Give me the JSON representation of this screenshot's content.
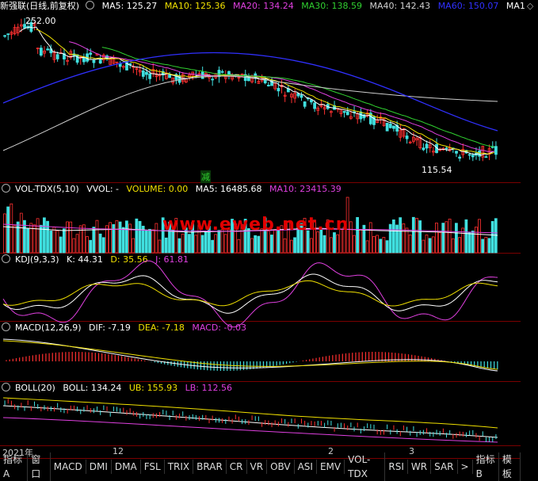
{
  "main": {
    "title": "新强联(日线,前复权)",
    "ma": [
      {
        "label": "MA5: 125.27",
        "color": "#ffffff"
      },
      {
        "label": "MA10: 125.36",
        "color": "#f0e000"
      },
      {
        "label": "MA20: 134.24",
        "color": "#e040e0"
      },
      {
        "label": "MA30: 138.59",
        "color": "#30d030"
      },
      {
        "label": "MA40: 142.43",
        "color": "#d0d0d0"
      },
      {
        "label": "MA60: 150.07",
        "color": "#3030ff"
      },
      {
        "label": "MA1",
        "color": "#ffffff"
      }
    ],
    "high_label": "252.00",
    "low_label": "115.54",
    "mark_text": "减"
  },
  "vol": {
    "title": "VOL-TDX(5,10)",
    "vvol": "VVOL: -",
    "volume": "VOLUME: 0.00",
    "ma5": "MA5: 16485.68",
    "ma10": "MA10: 23415.39",
    "watermark": "www.eweb.net.cn"
  },
  "kdj": {
    "title": "KDJ(9,3,3)",
    "k": "K: 44.31",
    "d": "D: 35.56",
    "j": "J: 61.81"
  },
  "macd": {
    "title": "MACD(12,26,9)",
    "dif": "DIF: -7.19",
    "dea": "DEA: -7.18",
    "macd": "MACD: -0.03"
  },
  "boll": {
    "title": "BOLL(20)",
    "boll": "BOLL: 134.24",
    "ub": "UB: 155.93",
    "lb": "LB: 112.56"
  },
  "dates": [
    {
      "label": "2021年"
    },
    {
      "label": "12"
    },
    {
      "label": "2"
    },
    {
      "label": "3"
    }
  ],
  "tabs": [
    "指标A",
    "窗口",
    "MACD",
    "DMI",
    "DMA",
    "FSL",
    "TRIX",
    "BRAR",
    "CR",
    "VR",
    "OBV",
    "ASI",
    "EMV",
    "VOL-TDX",
    "RSI",
    "WR",
    "SAR",
    ">"
  ],
  "tabs_right": [
    "指标B",
    "模板"
  ],
  "colors": {
    "up": "#ff3030",
    "down": "#40e0e0",
    "grid": "#7a0000"
  }
}
